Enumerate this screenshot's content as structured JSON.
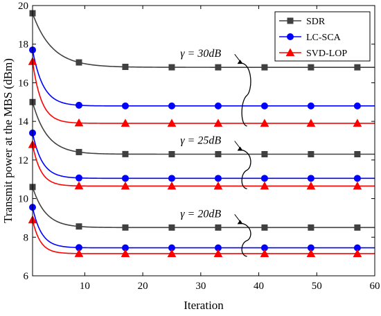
{
  "chart_data": {
    "type": "line",
    "xlabel": "Iteration",
    "ylabel": "Transmit power at the MBS (dBm)",
    "xlim": [
      1,
      60
    ],
    "ylim": [
      6,
      20
    ],
    "xticks": [
      10,
      20,
      30,
      40,
      50,
      60
    ],
    "yticks": [
      6,
      8,
      10,
      12,
      14,
      16,
      18,
      20
    ],
    "grid": false,
    "legend_position": "top-right",
    "legend": [
      "SDR",
      "LC-SCA",
      "SVD-LOP"
    ],
    "colors": {
      "SDR": "#404040",
      "LC-SCA": "#0000ff",
      "SVD-LOP": "#ff0000"
    },
    "markers": {
      "SDR": "square",
      "LC-SCA": "circle",
      "SVD-LOP": "triangle"
    },
    "marker_x": [
      1,
      9,
      17,
      25,
      33,
      41,
      49,
      57
    ],
    "groups": [
      {
        "annotation": "γ = 30dB",
        "series": [
          {
            "name": "SDR",
            "initial": 19.6,
            "final": 16.8,
            "rate": 0.3
          },
          {
            "name": "LC-SCA",
            "initial": 17.7,
            "final": 14.8,
            "rate": 0.55
          },
          {
            "name": "SVD-LOP",
            "initial": 17.1,
            "final": 13.9,
            "rate": 0.65
          }
        ]
      },
      {
        "annotation": "γ = 25dB",
        "series": [
          {
            "name": "SDR",
            "initial": 15.0,
            "final": 12.3,
            "rate": 0.4
          },
          {
            "name": "LC-SCA",
            "initial": 13.4,
            "final": 11.05,
            "rate": 0.6
          },
          {
            "name": "SVD-LOP",
            "initial": 12.8,
            "final": 10.65,
            "rate": 0.7
          }
        ]
      },
      {
        "annotation": "γ = 20dB",
        "series": [
          {
            "name": "SDR",
            "initial": 10.6,
            "final": 8.5,
            "rate": 0.45
          },
          {
            "name": "LC-SCA",
            "initial": 9.55,
            "final": 7.45,
            "rate": 0.65
          },
          {
            "name": "SVD-LOP",
            "initial": 8.9,
            "final": 7.15,
            "rate": 0.75
          }
        ]
      }
    ]
  }
}
